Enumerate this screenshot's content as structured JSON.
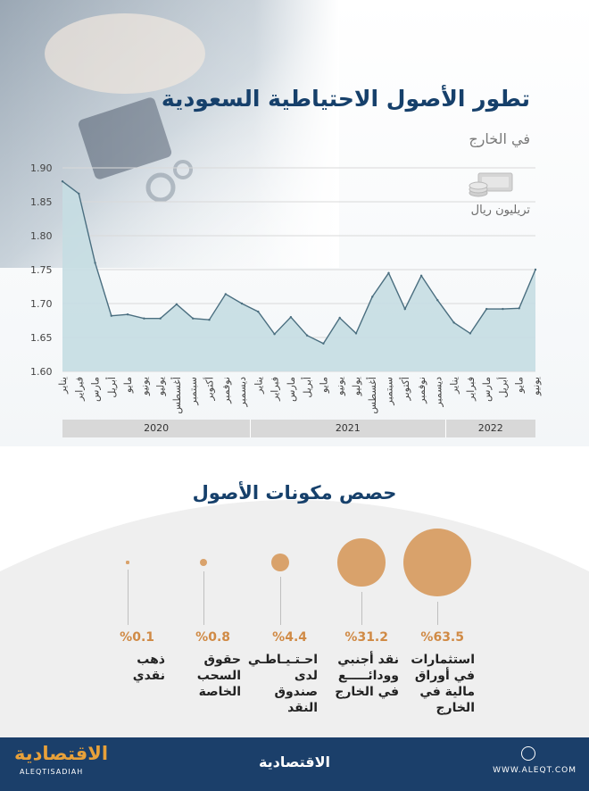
{
  "header": {
    "title": "تطور الأصول الاحتياطية السعودية",
    "subtitle": "في الخارج",
    "unit": "تريليون ريال"
  },
  "chart_data": {
    "type": "area",
    "title": "تطور الأصول الاحتياطية السعودية",
    "subtitle": "في الخارج",
    "ylabel": "تريليون ريال",
    "ylim": [
      1.6,
      1.9
    ],
    "yticks": [
      "1.90",
      "1.85",
      "1.80",
      "1.75",
      "1.70",
      "1.65",
      "1.60"
    ],
    "x": [
      "يناير",
      "فبراير",
      "مارس",
      "أبريل",
      "مايو",
      "يونيو",
      "يوليو",
      "أغسطس",
      "سبتمبر",
      "أكتوبر",
      "نوفمبر",
      "ديسمبر",
      "يناير",
      "فبراير",
      "مارس",
      "أبريل",
      "مايو",
      "يونيو",
      "يوليو",
      "أغسطس",
      "سبتمبر",
      "أكتوبر",
      "نوفمبر",
      "ديسمبر",
      "يناير",
      "فبراير",
      "مارس",
      "أبريل",
      "مايو",
      "يونيو"
    ],
    "values": [
      1.88,
      1.862,
      1.76,
      1.682,
      1.684,
      1.678,
      1.678,
      1.699,
      1.678,
      1.676,
      1.714,
      1.7,
      1.688,
      1.655,
      1.68,
      1.653,
      1.641,
      1.679,
      1.656,
      1.71,
      1.745,
      1.692,
      1.741,
      1.705,
      1.672,
      1.656,
      1.692,
      1.692,
      1.693,
      1.75
    ],
    "years": [
      {
        "label": "2020",
        "months": 12
      },
      {
        "label": "2021",
        "months": 12
      },
      {
        "label": "2022",
        "months": 6
      }
    ],
    "fill_color": "#c5dde2",
    "line_color": "#4b6f80",
    "grid": true
  },
  "components": {
    "title": "حصص مكونات الأصول",
    "color": "#d9a26b",
    "items": [
      {
        "pct": "%63.5",
        "value": 63.5,
        "label": [
          "استثمارات",
          "في أوراق",
          "مالية في",
          "الخارج"
        ]
      },
      {
        "pct": "%31.2",
        "value": 31.2,
        "label": [
          "نقد أجنبي",
          "وودائـــــع",
          "في الخارج"
        ]
      },
      {
        "pct": "%4.4",
        "value": 4.4,
        "label": [
          "احـتـيـاطـي",
          "لدى صندوق",
          "النقد"
        ]
      },
      {
        "pct": "%0.8",
        "value": 0.8,
        "label": [
          "حقوق",
          "السحب",
          "الخاصة"
        ]
      },
      {
        "pct": "%0.1",
        "value": 0.1,
        "label": [
          "ذهب",
          "نقدي"
        ]
      }
    ]
  },
  "footer": {
    "logo_left": "الاقتصادية",
    "logo_left_sub": "ALEQTISADIAH",
    "logo_center": "الاقتصادية",
    "url": "WWW.ALEQT.COM"
  }
}
